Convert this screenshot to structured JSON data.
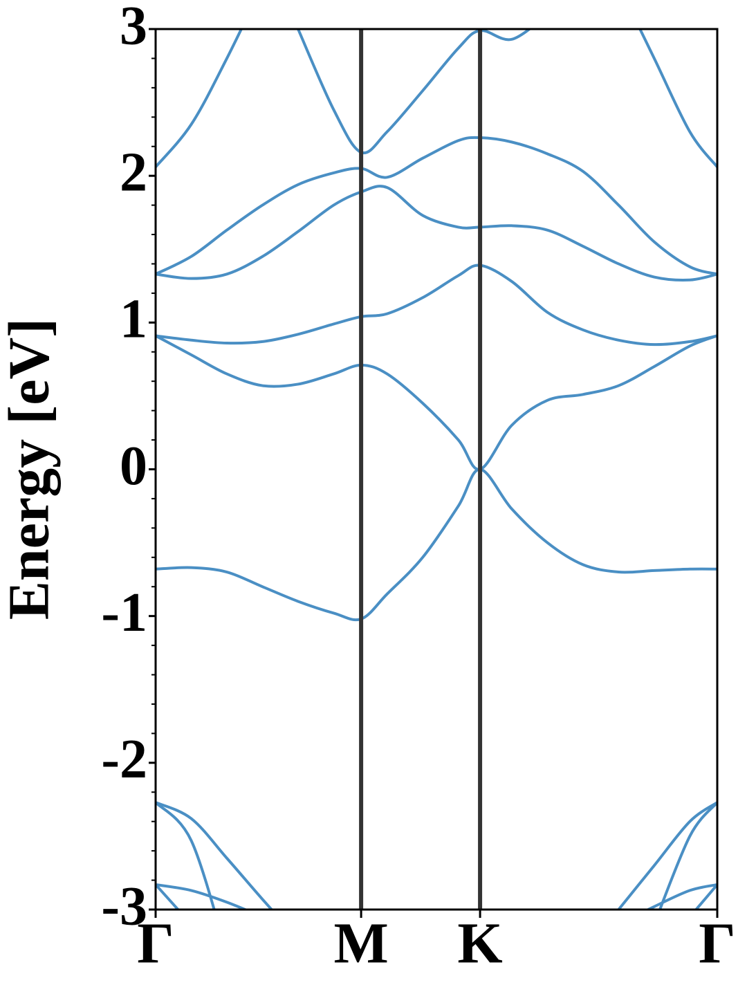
{
  "chart_data": {
    "type": "line",
    "ylabel": "Energy [eV]",
    "x": [
      0,
      0.1,
      0.2,
      0.3,
      0.4,
      0.5,
      0.577,
      0.65,
      0.75,
      0.85,
      0.911,
      1.0,
      1.1,
      1.2,
      1.3,
      1.4,
      1.5,
      1.577
    ],
    "xlim": [
      0,
      1.577
    ],
    "xticks": [
      {
        "value": 0,
        "label": "Γ"
      },
      {
        "value": 0.577,
        "label": "M"
      },
      {
        "value": 0.911,
        "label": "K"
      },
      {
        "value": 1.577,
        "label": "Γ"
      }
    ],
    "ylim": [
      -3,
      3
    ],
    "yticks": [
      -3,
      -2,
      -1,
      0,
      1,
      2,
      3
    ],
    "yminorticks": [
      -2.8,
      -2.6,
      -2.4,
      -2.2,
      -1.8,
      -1.6,
      -1.4,
      -1.2,
      -0.8,
      -0.6,
      -0.4,
      -0.2,
      0.2,
      0.4,
      0.6,
      0.8,
      1.2,
      1.4,
      1.6,
      1.8,
      2.2,
      2.4,
      2.6,
      2.8
    ],
    "symmetry_lines": true,
    "series": [
      {
        "color": "#4a8fc4",
        "values": [
          -0.68,
          -0.67,
          -0.7,
          -0.8,
          -0.9,
          -0.98,
          -1.02,
          -0.85,
          -0.6,
          -0.25,
          0,
          -0.27,
          -0.5,
          -0.65,
          -0.7,
          -0.69,
          -0.68,
          -0.68
        ]
      },
      {
        "color": "#4a8fc4",
        "values": [
          0.91,
          0.78,
          0.65,
          0.57,
          0.58,
          0.65,
          0.71,
          0.65,
          0.45,
          0.2,
          0,
          0.3,
          0.47,
          0.51,
          0.57,
          0.7,
          0.84,
          0.91
        ]
      },
      {
        "color": "#4a8fc4",
        "values": [
          0.91,
          0.88,
          0.86,
          0.87,
          0.92,
          0.99,
          1.04,
          1.06,
          1.17,
          1.32,
          1.39,
          1.28,
          1.07,
          0.95,
          0.88,
          0.85,
          0.87,
          0.91
        ]
      },
      {
        "color": "#4a8fc4",
        "values": [
          1.33,
          1.3,
          1.33,
          1.45,
          1.62,
          1.8,
          1.89,
          1.92,
          1.73,
          1.65,
          1.65,
          1.66,
          1.63,
          1.52,
          1.4,
          1.31,
          1.29,
          1.33
        ]
      },
      {
        "color": "#4a8fc4",
        "values": [
          1.33,
          1.45,
          1.63,
          1.8,
          1.94,
          2.02,
          2.05,
          1.99,
          2.12,
          2.24,
          2.26,
          2.23,
          2.15,
          2.03,
          1.8,
          1.55,
          1.38,
          1.33
        ]
      },
      {
        "color": "#4a8fc4",
        "values": [
          2.06,
          2.35,
          2.8,
          3.3,
          null,
          null,
          null,
          null,
          null,
          null,
          null,
          null,
          null,
          null,
          3.3,
          2.8,
          2.3,
          2.06
        ]
      },
      {
        "color": "#4a8fc4",
        "values": [
          null,
          null,
          null,
          null,
          3.0,
          2.45,
          2.16,
          2.3,
          2.58,
          2.87,
          2.99,
          2.93,
          3.1,
          null,
          null,
          null,
          null,
          null
        ]
      },
      {
        "color": "#4a8fc4",
        "values": [
          -2.27,
          -2.53,
          -3.3,
          null,
          null,
          null,
          null,
          null,
          null,
          null,
          null,
          null,
          null,
          null,
          null,
          -3.1,
          -2.5,
          -2.27
        ]
      },
      {
        "color": "#4a8fc4",
        "values": [
          -2.27,
          -2.38,
          -2.65,
          -2.93,
          -3.2,
          null,
          null,
          null,
          null,
          null,
          null,
          null,
          null,
          null,
          -3.0,
          -2.7,
          -2.4,
          -2.27
        ]
      },
      {
        "color": "#4a8fc4",
        "values": [
          -2.83,
          -2.87,
          -2.95,
          -3.05,
          null,
          null,
          null,
          null,
          null,
          null,
          null,
          null,
          null,
          null,
          -3.1,
          -2.98,
          -2.87,
          -2.83
        ]
      },
      {
        "color": "#4a8fc4",
        "values": [
          -2.83,
          -3.1,
          null,
          null,
          null,
          null,
          null,
          null,
          null,
          null,
          null,
          null,
          null,
          null,
          null,
          null,
          -3.05,
          -2.83
        ]
      }
    ]
  }
}
